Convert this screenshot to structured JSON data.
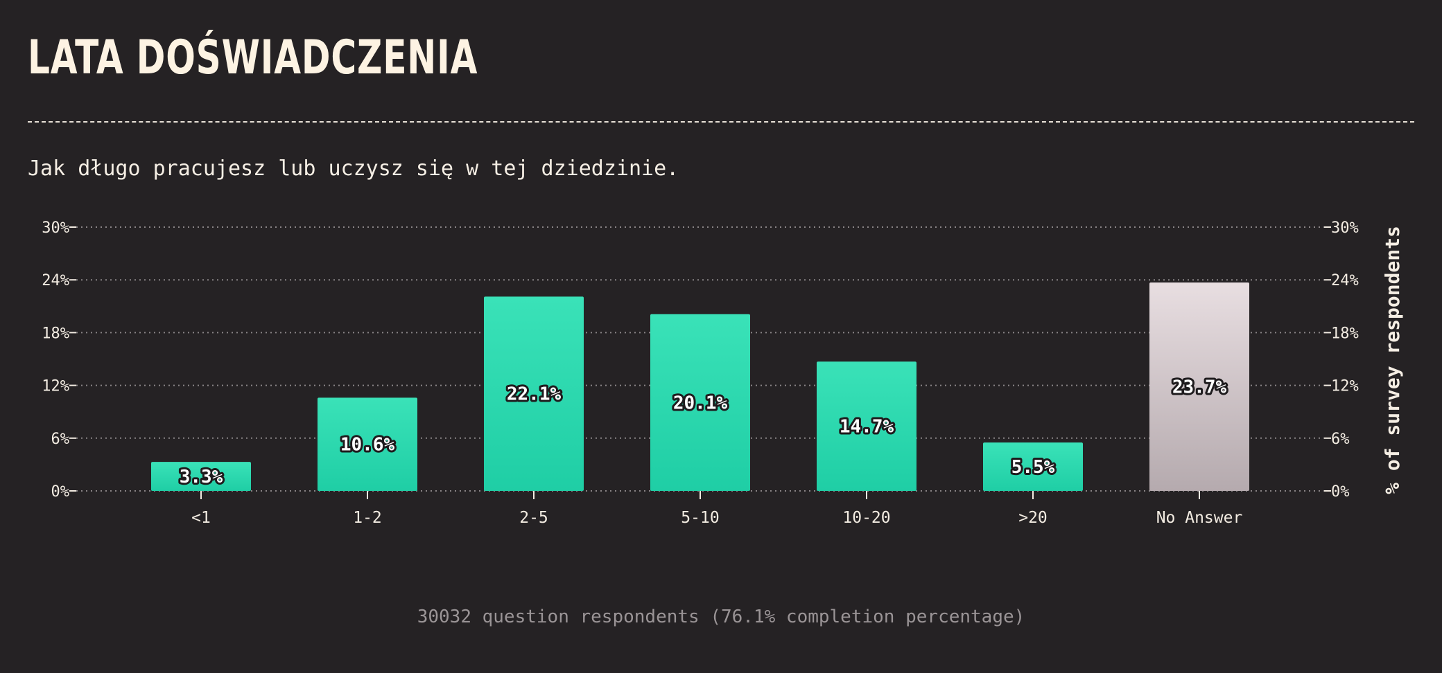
{
  "header": {
    "title": "LATA DOŚWIADCZENIA",
    "subtitle": "Jak długo pracujesz lub uczysz się w tej dziedzinie."
  },
  "footer": {
    "text": "30032 question respondents (76.1% completion percentage)"
  },
  "colors": {
    "background": "#252224",
    "bar_top": "#3ae2b8",
    "bar_bottom": "#1fcea5",
    "no_answer_top": "#e8dee1",
    "no_answer_bottom": "#b5aaae",
    "grid": "#8a8587"
  },
  "chart_data": {
    "type": "bar",
    "categories": [
      "<1",
      "1-2",
      "2-5",
      "5-10",
      "10-20",
      ">20",
      "No Answer"
    ],
    "values": [
      3.3,
      10.6,
      22.1,
      20.1,
      14.7,
      5.5,
      23.7
    ],
    "value_labels": [
      "3.3%",
      "10.6%",
      "22.1%",
      "20.1%",
      "14.7%",
      "5.5%",
      "23.7%"
    ],
    "ylim": [
      0,
      30
    ],
    "yticks": [
      0,
      6,
      12,
      18,
      24,
      30
    ],
    "ytick_labels": [
      "0%",
      "6%",
      "12%",
      "18%",
      "24%",
      "30%"
    ],
    "ylabel": "% of survey respondents",
    "grid": true
  }
}
